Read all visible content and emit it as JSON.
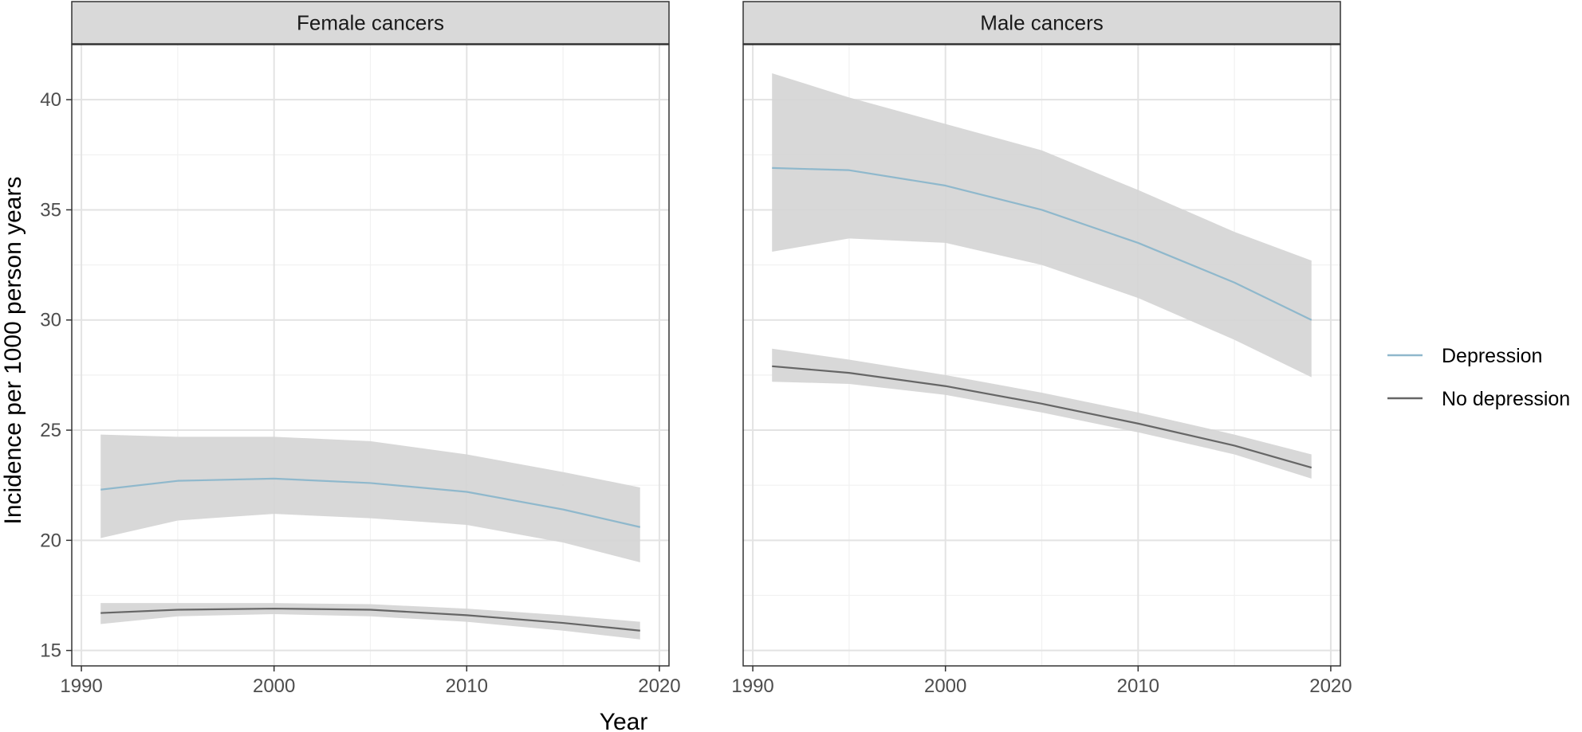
{
  "chart_data": {
    "type": "line",
    "xlabel": "Year",
    "ylabel": "Incidence per 1000 person years",
    "xlim": [
      1989.5,
      2020.5
    ],
    "ylim": [
      14.3,
      42.5
    ],
    "x_ticks": [
      1990,
      2000,
      2010,
      2020
    ],
    "y_ticks": [
      15,
      20,
      25,
      30,
      35,
      40
    ],
    "grid": true,
    "legend_position": "right",
    "colors": {
      "Depression": "#8fb8cc",
      "No depression": "#666666",
      "ribbon": "#d4d4d4"
    },
    "panels": [
      {
        "title": "Female cancers",
        "series": [
          {
            "name": "Depression",
            "x": [
              1991,
              1995,
              2000,
              2005,
              2010,
              2015,
              2019
            ],
            "y": [
              22.3,
              22.7,
              22.8,
              22.6,
              22.2,
              21.4,
              20.6
            ],
            "lower": [
              20.1,
              20.9,
              21.2,
              21.0,
              20.7,
              19.9,
              19.0
            ],
            "upper": [
              24.8,
              24.7,
              24.7,
              24.5,
              23.9,
              23.1,
              22.4
            ]
          },
          {
            "name": "No depression",
            "x": [
              1991,
              1995,
              2000,
              2005,
              2010,
              2015,
              2019
            ],
            "y": [
              16.7,
              16.85,
              16.9,
              16.85,
              16.6,
              16.25,
              15.9
            ],
            "lower": [
              16.2,
              16.55,
              16.65,
              16.55,
              16.3,
              15.9,
              15.5
            ],
            "upper": [
              17.15,
              17.15,
              17.15,
              17.1,
              16.9,
              16.6,
              16.3
            ]
          }
        ]
      },
      {
        "title": "Male cancers",
        "series": [
          {
            "name": "Depression",
            "x": [
              1991,
              1995,
              2000,
              2005,
              2010,
              2015,
              2019
            ],
            "y": [
              36.9,
              36.8,
              36.1,
              35.0,
              33.5,
              31.7,
              30.0
            ],
            "lower": [
              33.1,
              33.7,
              33.5,
              32.5,
              31.0,
              29.1,
              27.4
            ],
            "upper": [
              41.2,
              40.1,
              38.9,
              37.7,
              35.9,
              34.0,
              32.7
            ]
          },
          {
            "name": "No depression",
            "x": [
              1991,
              1995,
              2000,
              2005,
              2010,
              2015,
              2019
            ],
            "y": [
              27.9,
              27.6,
              27.0,
              26.2,
              25.3,
              24.3,
              23.3
            ],
            "lower": [
              27.2,
              27.1,
              26.6,
              25.8,
              24.9,
              23.9,
              22.8
            ],
            "upper": [
              28.7,
              28.2,
              27.5,
              26.7,
              25.8,
              24.8,
              23.9
            ]
          }
        ]
      }
    ]
  }
}
